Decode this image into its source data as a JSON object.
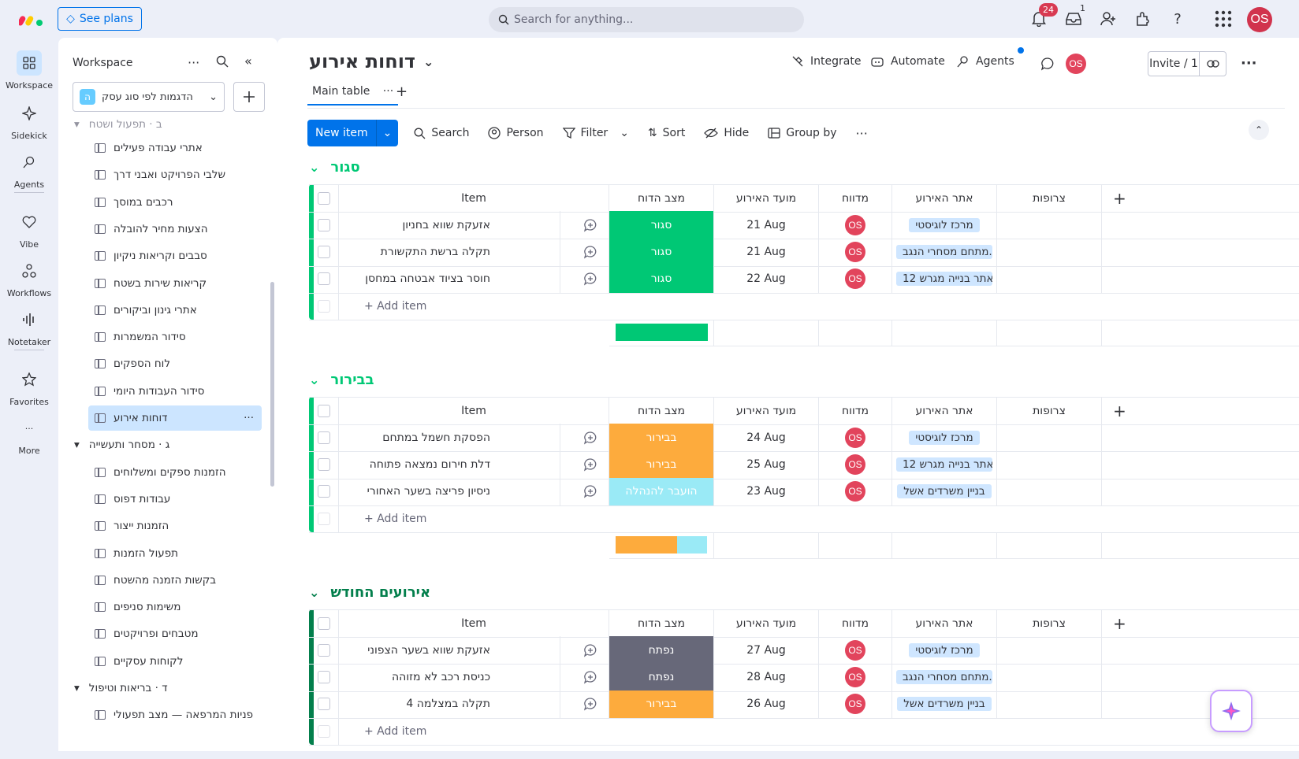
{
  "topbar": {
    "see_plans": "See plans",
    "search_placeholder": "Search for anything...",
    "notifications_count": "24",
    "inbox_count": "1",
    "user_initials": "OS"
  },
  "rail": {
    "items": [
      {
        "label": "Workspace",
        "icon": "grid-icon"
      },
      {
        "label": "Sidekick",
        "icon": "sparkle-icon"
      },
      {
        "label": "Agents",
        "icon": "agent-icon"
      },
      {
        "label": "Vibe",
        "icon": "heart-icon"
      },
      {
        "label": "Workflows",
        "icon": "workflow-icon"
      },
      {
        "label": "Notetaker",
        "icon": "waveform-icon"
      },
      {
        "label": "Favorites",
        "icon": "star-icon"
      },
      {
        "label": "More",
        "icon": "more-icon"
      }
    ]
  },
  "sidebar": {
    "title": "Workspace",
    "workspace_name": "הדגמות לפי סוג עסק",
    "workspace_letter": "ה",
    "cut_folder": "ב · תפעול ושטח",
    "boards": [
      "אתרי עבודה פעילים",
      "שלבי הפרויקט ואבני דרך",
      "רכבים במוסך",
      "הצעות מחיר להובלה",
      "סבבים וקריאות ניקיון",
      "קריאות שירות בשטח",
      "אתרי גינון וביקורים",
      "סידור המשמרות",
      "לוח הספקים",
      "סידור העבודות היומי",
      "דוחות אירוע"
    ],
    "folder_g": "ג · מסחר ותעשייה",
    "boards_g": [
      "הזמנות ספקים ומשלוחים",
      "עבודות דפוס",
      "הזמנות ייצור",
      "תפעול הזמנות",
      "בקשות הזמנה מהשטח",
      "משימות סניפים",
      "מטבחים ופרויקטים",
      "לקוחות עסקיים"
    ],
    "folder_d": "ד · בריאות וטיפול",
    "cut_bottom": "פניות המרפאה — מצב תפעולי"
  },
  "board": {
    "title": "דוחות אירוע",
    "integrate": "Integrate",
    "automate": "Automate",
    "agents": "Agents",
    "invite": "Invite / 1",
    "avatar": "OS",
    "tab_main": "Main table",
    "toolbar": {
      "new_item": "New item",
      "search": "Search",
      "person": "Person",
      "filter": "Filter",
      "sort": "Sort",
      "hide": "Hide",
      "group_by": "Group by"
    },
    "columns": {
      "item": "Item",
      "status": "מצב הדוח",
      "date": "מועד האירוע",
      "owner": "מדווח",
      "site": "אתר האירוע",
      "files": "צרופות"
    },
    "add_item": "+ Add item",
    "groups": [
      {
        "title": "סגור",
        "color": "#00c875",
        "rows": [
          {
            "item": "אזעקת שווא בחניון",
            "status": "סגור",
            "status_color": "#00c875",
            "date": "21 Aug",
            "owner": "OS",
            "site": "מרכז לוגיסטי"
          },
          {
            "item": "תקלה ברשת התקשורת",
            "status": "סגור",
            "status_color": "#00c875",
            "date": "21 Aug",
            "owner": "OS",
            "site": "מתחם מסחרי הנגב..."
          },
          {
            "item": "חוסר בציוד אבטחה במחסן",
            "status": "סגור",
            "status_color": "#00c875",
            "date": "22 Aug",
            "owner": "OS",
            "site": "אתר בנייה מגרש 12"
          }
        ],
        "summary": [
          {
            "color": "#00c875",
            "fraction": 1.0
          }
        ]
      },
      {
        "title": "בבירור",
        "color": "#00c875",
        "rows": [
          {
            "item": "הפסקת חשמל במתחם",
            "status": "בבירור",
            "status_color": "#fdab3d",
            "date": "24 Aug",
            "owner": "OS",
            "site": "מרכז לוגיסטי"
          },
          {
            "item": "דלת חירום נמצאה פתוחה",
            "status": "בבירור",
            "status_color": "#fdab3d",
            "date": "25 Aug",
            "owner": "OS",
            "site": "אתר בנייה מגרש 12"
          },
          {
            "item": "ניסיון פריצה בשער האחורי",
            "status": "הועבר להנהלה",
            "status_color": "#9aeaf6",
            "date": "23 Aug",
            "owner": "OS",
            "site": "בניין משרדים אשל"
          }
        ],
        "summary": [
          {
            "color": "#fdab3d",
            "fraction": 0.67
          },
          {
            "color": "#9aeaf6",
            "fraction": 0.33
          }
        ]
      },
      {
        "title": "אירועים החודש",
        "color": "#037f4c",
        "rows": [
          {
            "item": "אזעקת שווא בשער הצפוני",
            "status": "נפתח",
            "status_color": "#676879",
            "date": "27 Aug",
            "owner": "OS",
            "site": "מרכז לוגיסטי"
          },
          {
            "item": "כניסת רכב לא מזוהה",
            "status": "נפתח",
            "status_color": "#676879",
            "date": "28 Aug",
            "owner": "OS",
            "site": "מתחם מסחרי הנגב..."
          },
          {
            "item": "תקלה במצלמה 4",
            "status": "בבירור",
            "status_color": "#fdab3d",
            "date": "26 Aug",
            "owner": "OS",
            "site": "בניין משרדים אשל"
          }
        ]
      }
    ]
  }
}
